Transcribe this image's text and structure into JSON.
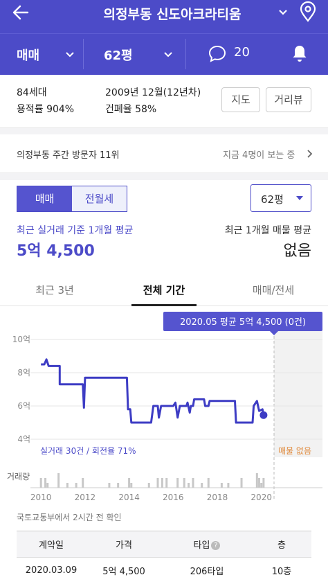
{
  "header": {
    "title": "의정부동 신도아크라티움",
    "trade_type": "매매",
    "area": "62평",
    "comment_count": "20"
  },
  "info": {
    "households": "84세대",
    "floor_area_ratio": "용적률 904%",
    "built": "2009년 12월(12년차)",
    "building_coverage": "건폐율 58%",
    "map_button": "지도",
    "street_button": "거리뷰"
  },
  "visitor": {
    "rank_text": "의정부동 주간 방문자 11위",
    "watching_text": "지금 4명이 보는 중"
  },
  "price": {
    "seg_buy": "매매",
    "seg_rent": "전월세",
    "area_select": "62평",
    "recent_label": "최근 실거래 기준 1개월 평균",
    "recent_value": "5억 4,500",
    "listing_label": "최근 1개월 매물 평균",
    "listing_value": "없음"
  },
  "period_tabs": [
    "최근 3년",
    "전체 기간",
    "매매/전세"
  ],
  "chart_data": {
    "type": "line",
    "tooltip": "2020.05 평균 5억 4,500 (0건)",
    "y_ticks": [
      "10억",
      "8억",
      "6억",
      "4억"
    ],
    "ylim": [
      4,
      10
    ],
    "x_ticks": [
      "2010",
      "2012",
      "2014",
      "2016",
      "2018",
      "2020"
    ],
    "xlim": [
      2009.9,
      2020.7
    ],
    "legend_left": "실거래 30건 / 회전율 71%",
    "legend_right": "매물 없음",
    "volume_label": "거래량",
    "line_color": "#3d3cc4",
    "series": [
      {
        "values": [
          [
            2010.0,
            8.5
          ],
          [
            2010.15,
            8.5
          ],
          [
            2010.25,
            8.8
          ],
          [
            2010.35,
            8.4
          ],
          [
            2010.75,
            8.4
          ],
          [
            2010.85,
            8.4
          ],
          [
            2010.85,
            7.3
          ],
          [
            2011.6,
            7.3
          ],
          [
            2011.9,
            7.3
          ],
          [
            2011.95,
            5.9
          ],
          [
            2012.0,
            7.7
          ],
          [
            2013.9,
            7.7
          ],
          [
            2013.95,
            5.8
          ],
          [
            2014.05,
            5.8
          ],
          [
            2014.1,
            5.0
          ],
          [
            2015.0,
            5.0
          ],
          [
            2015.1,
            6.0
          ],
          [
            2015.3,
            6.0
          ],
          [
            2015.35,
            5.3
          ],
          [
            2015.45,
            6.0
          ],
          [
            2016.0,
            6.0
          ],
          [
            2016.1,
            6.2
          ],
          [
            2016.2,
            5.3
          ],
          [
            2016.3,
            6.0
          ],
          [
            2016.6,
            6.0
          ],
          [
            2016.65,
            6.2
          ],
          [
            2016.75,
            5.6
          ],
          [
            2016.8,
            6.0
          ],
          [
            2016.9,
            6.0
          ],
          [
            2016.95,
            6.4
          ],
          [
            2017.4,
            6.4
          ],
          [
            2017.45,
            6.0
          ],
          [
            2017.6,
            6.0
          ],
          [
            2017.65,
            6.3
          ],
          [
            2018.8,
            6.3
          ],
          [
            2018.85,
            5.0
          ],
          [
            2019.6,
            5.0
          ],
          [
            2019.65,
            6.0
          ],
          [
            2019.8,
            6.3
          ],
          [
            2019.9,
            5.7
          ],
          [
            2020.05,
            5.8
          ],
          [
            2020.1,
            5.45
          ]
        ]
      }
    ],
    "volume": [
      [
        2010.0,
        2
      ],
      [
        2010.2,
        2
      ],
      [
        2010.3,
        1
      ],
      [
        2010.8,
        3
      ],
      [
        2011.2,
        1
      ],
      [
        2011.6,
        1
      ],
      [
        2011.9,
        2
      ],
      [
        2013.1,
        1
      ],
      [
        2013.5,
        1
      ],
      [
        2014.0,
        2
      ],
      [
        2014.1,
        1
      ],
      [
        2014.9,
        1
      ],
      [
        2015.3,
        2
      ],
      [
        2015.5,
        2
      ],
      [
        2015.7,
        2
      ],
      [
        2016.2,
        2
      ],
      [
        2016.5,
        2
      ],
      [
        2016.7,
        1
      ],
      [
        2016.9,
        2
      ],
      [
        2017.3,
        1
      ],
      [
        2017.6,
        2
      ],
      [
        2018.2,
        1
      ],
      [
        2018.5,
        1
      ],
      [
        2019.1,
        2
      ],
      [
        2019.8,
        3
      ],
      [
        2019.9,
        2
      ],
      [
        2020.0,
        1
      ],
      [
        2020.1,
        2
      ]
    ]
  },
  "source_note": "국토교통부에서 2시간 전 확인",
  "table": {
    "headers": [
      "계약일",
      "가격",
      "타입",
      "층"
    ],
    "rows": [
      [
        "2020.03.09",
        "5억 4,500",
        "206타입",
        "10층"
      ]
    ]
  }
}
